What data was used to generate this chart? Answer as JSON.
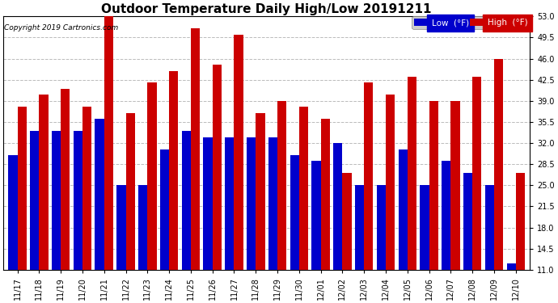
{
  "title": "Outdoor Temperature Daily High/Low 20191211",
  "copyright": "Copyright 2019 Cartronics.com",
  "legend_low": "Low  (°F)",
  "legend_high": "High  (°F)",
  "dates": [
    "11/17",
    "11/18",
    "11/19",
    "11/20",
    "11/21",
    "11/22",
    "11/23",
    "11/24",
    "11/25",
    "11/26",
    "11/27",
    "11/28",
    "11/29",
    "11/30",
    "12/01",
    "12/02",
    "12/03",
    "12/04",
    "12/05",
    "12/06",
    "12/07",
    "12/08",
    "12/09",
    "12/10"
  ],
  "low_vals": [
    30,
    34,
    34,
    34,
    36,
    25,
    25,
    31,
    34,
    33,
    33,
    33,
    33,
    30,
    29,
    32,
    25,
    25,
    31,
    25,
    29,
    27,
    25,
    12
  ],
  "high_vals": [
    38,
    40,
    41,
    38,
    53,
    37,
    42,
    44,
    51,
    45,
    50,
    37,
    39,
    38,
    36,
    27,
    42,
    40,
    43,
    39,
    39,
    43,
    46,
    27
  ],
  "low_color": "#0000cc",
  "high_color": "#cc0000",
  "bg_color": "#ffffff",
  "grid_color": "#bbbbbb",
  "ylim_min": 11.0,
  "ylim_max": 53.0,
  "yticks": [
    11.0,
    14.5,
    18.0,
    21.5,
    25.0,
    28.5,
    32.0,
    35.5,
    39.0,
    42.5,
    46.0,
    49.5,
    53.0
  ],
  "bar_width": 0.42,
  "title_fontsize": 11,
  "tick_fontsize": 7,
  "copyright_fontsize": 6.5
}
